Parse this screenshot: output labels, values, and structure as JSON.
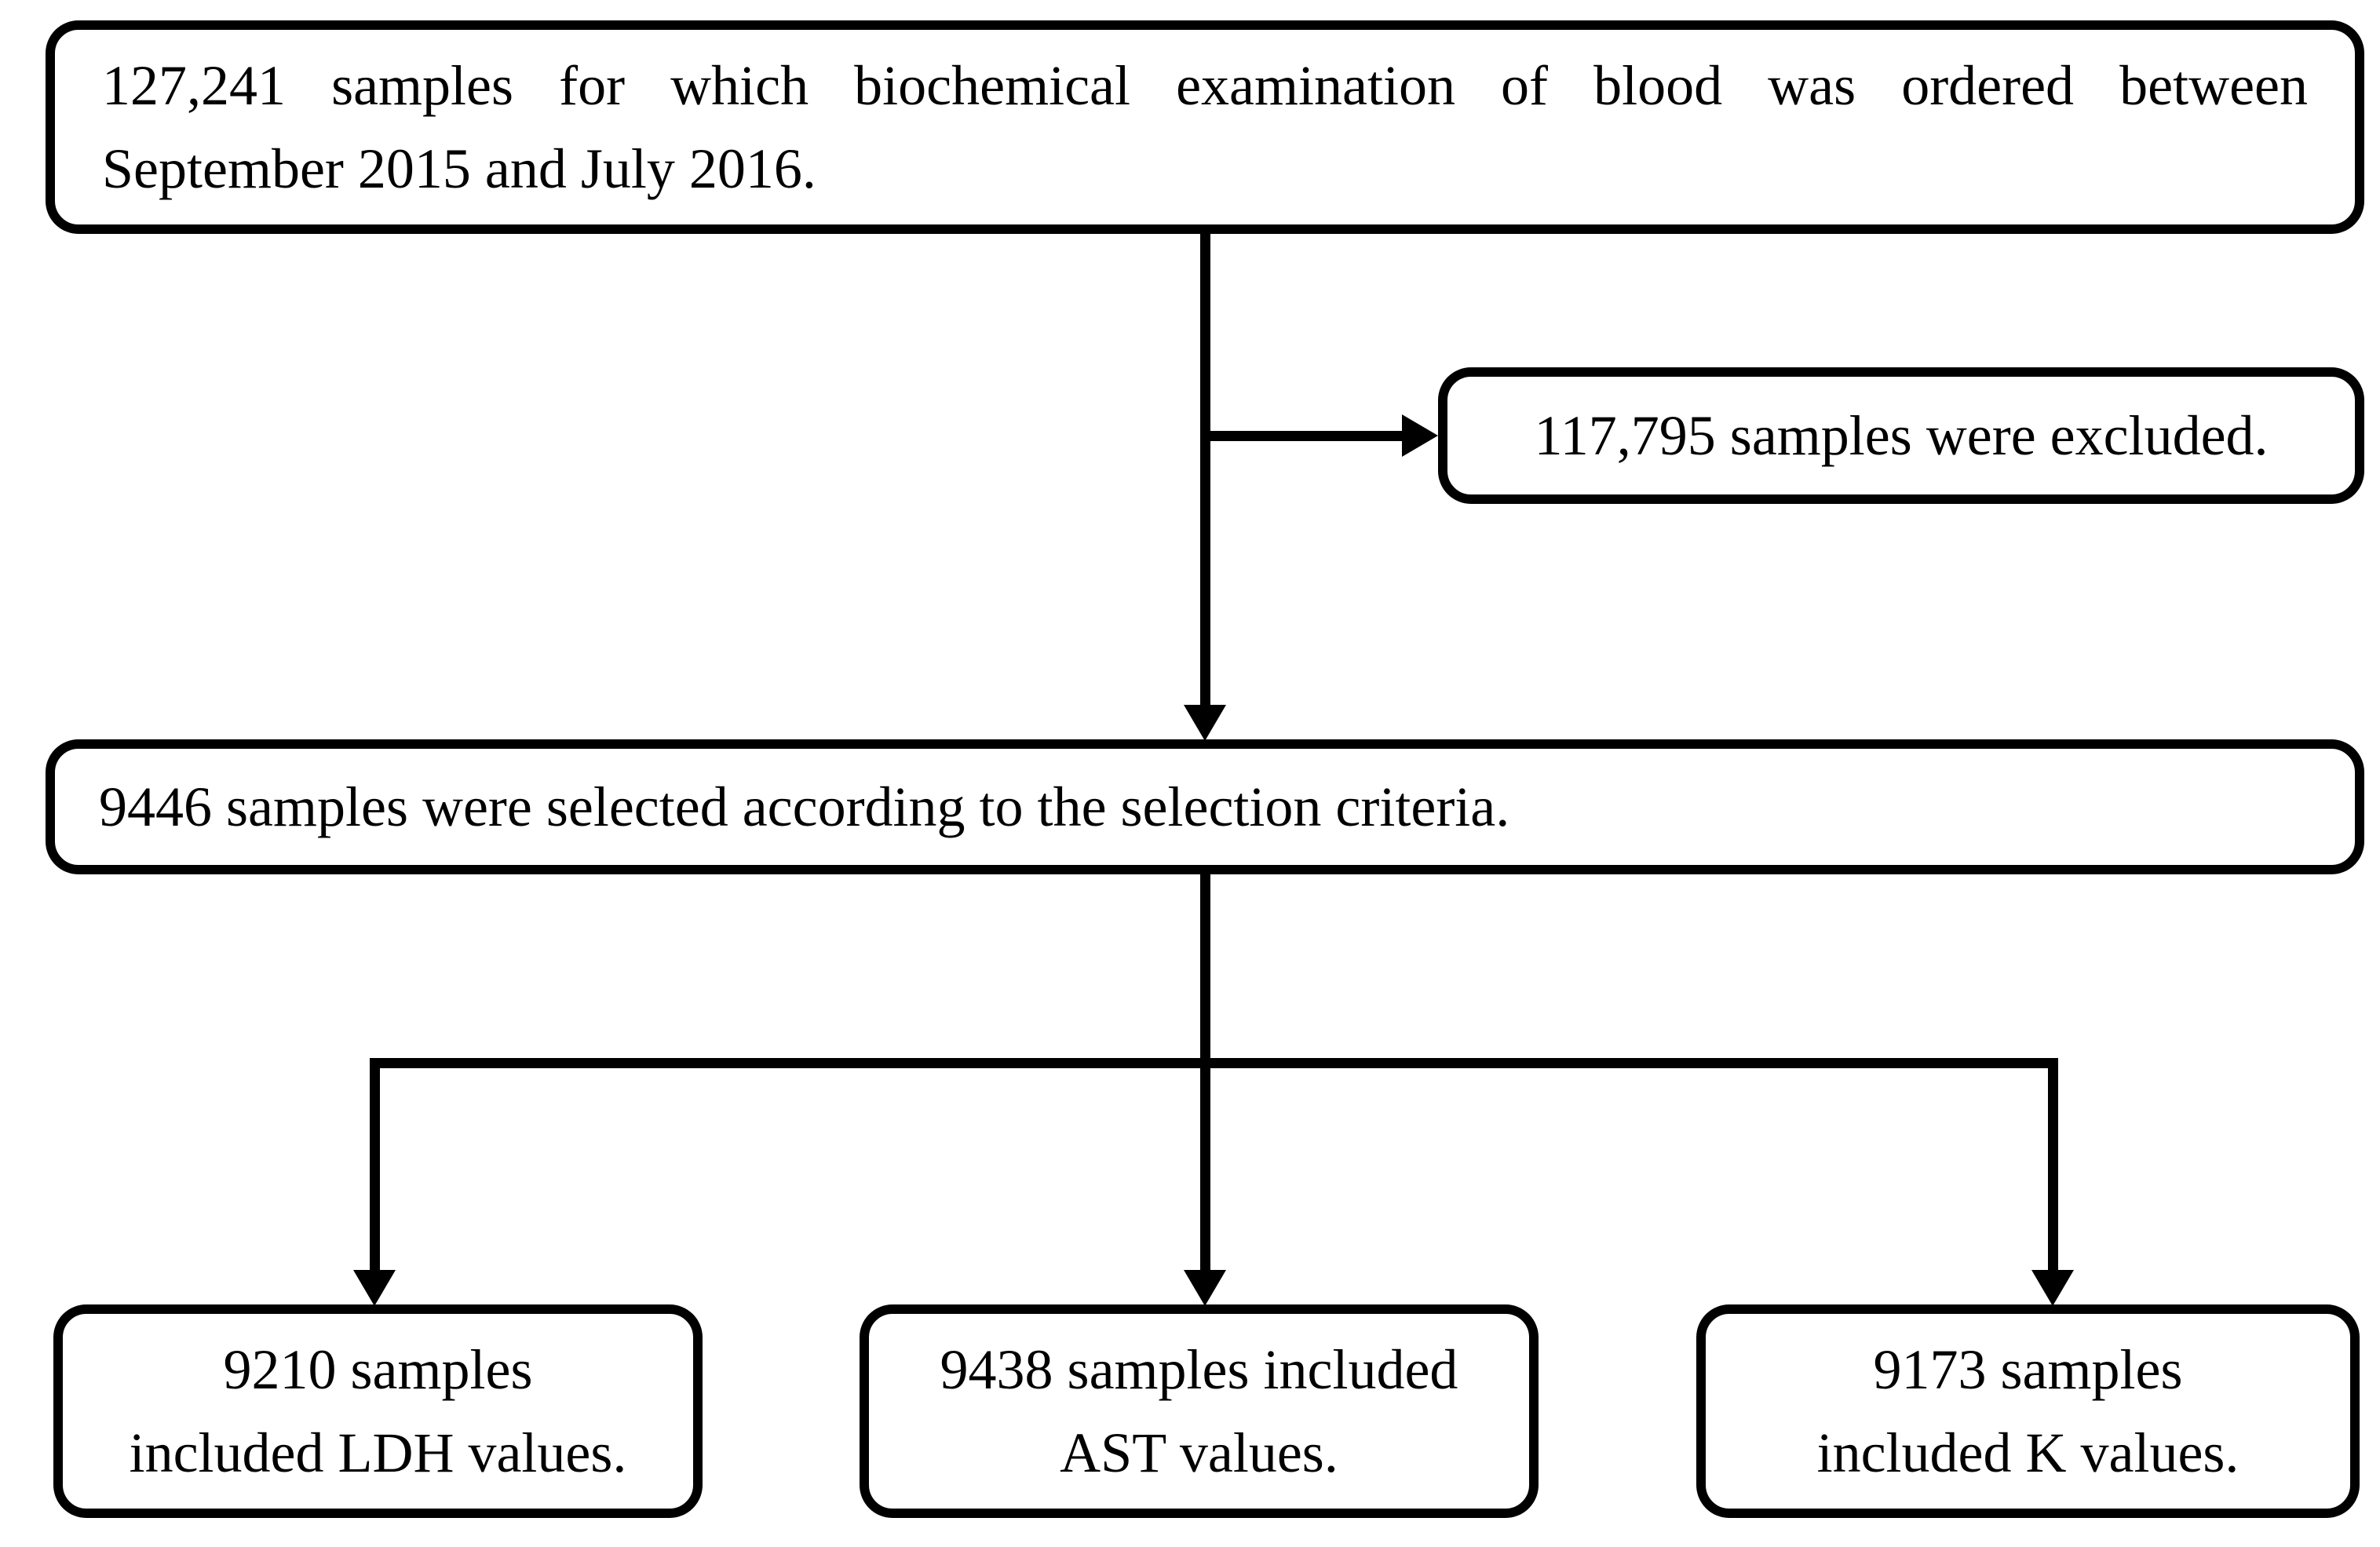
{
  "flowchart": {
    "kind": "sample-selection-flow-diagram",
    "colors": {
      "background": "#ffffff",
      "line": "#000000",
      "text": "#000000",
      "box_border": "#000000"
    },
    "box_initial": {
      "count": "127,241",
      "line1": "127,241 samples for which biochemical examination of blood was ordered between",
      "line2": "September 2015 and July 2016.",
      "full_text": "127,241 samples for which biochemical examination of blood was ordered between September 2015 and July 2016."
    },
    "box_excluded": {
      "count": "117,795",
      "text": "117,795 samples were excluded."
    },
    "box_selected": {
      "count": "9446",
      "text": "9446 samples were selected according to the selection criteria."
    },
    "box_ldh": {
      "count": "9210",
      "line1": "9210 samples",
      "line2": "included LDH values.",
      "full_text": "9210 samples included LDH values."
    },
    "box_ast": {
      "count": "9438",
      "line1": "9438 samples included",
      "line2": "AST values.",
      "full_text": "9438 samples included AST values."
    },
    "box_k": {
      "count": "9173",
      "line1": "9173 samples",
      "line2": "included K values.",
      "full_text": "9173 samples included K values."
    }
  }
}
